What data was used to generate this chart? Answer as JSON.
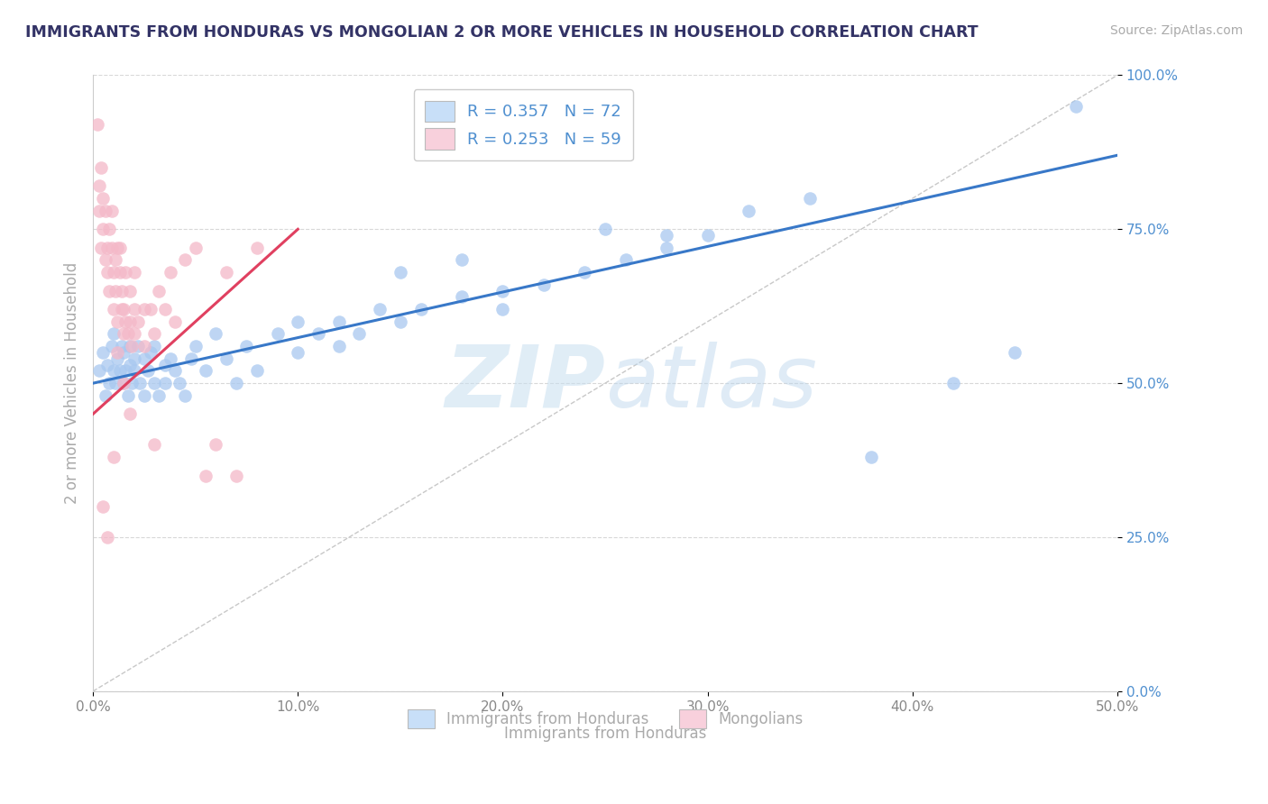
{
  "title": "IMMIGRANTS FROM HONDURAS VS MONGOLIAN 2 OR MORE VEHICLES IN HOUSEHOLD CORRELATION CHART",
  "source": "Source: ZipAtlas.com",
  "xlabel": "Immigrants from Honduras",
  "ylabel": "2 or more Vehicles in Household",
  "xlim": [
    0.0,
    0.5
  ],
  "ylim": [
    0.0,
    1.0
  ],
  "xticks": [
    0.0,
    0.1,
    0.2,
    0.3,
    0.4,
    0.5
  ],
  "yticks": [
    0.0,
    0.25,
    0.5,
    0.75,
    1.0
  ],
  "xticklabels": [
    "0.0%",
    "10.0%",
    "20.0%",
    "30.0%",
    "40.0%",
    "50.0%"
  ],
  "yticklabels": [
    "0.0%",
    "25.0%",
    "50.0%",
    "75.0%",
    "100.0%"
  ],
  "blue_R": 0.357,
  "blue_N": 72,
  "pink_R": 0.253,
  "pink_N": 59,
  "blue_color": "#a8c8f0",
  "pink_color": "#f4b8c8",
  "blue_line_color": "#3878c8",
  "pink_line_color": "#e04060",
  "legend_blue_face": "#c8dff8",
  "legend_pink_face": "#f8d0dc",
  "blue_trend_x0": 0.0,
  "blue_trend_y0": 0.5,
  "blue_trend_x1": 0.5,
  "blue_trend_y1": 0.87,
  "pink_trend_x0": 0.0,
  "pink_trend_y0": 0.45,
  "pink_trend_x1": 0.1,
  "pink_trend_y1": 0.75,
  "blue_scatter_x": [
    0.003,
    0.005,
    0.006,
    0.007,
    0.008,
    0.009,
    0.01,
    0.01,
    0.011,
    0.012,
    0.013,
    0.014,
    0.015,
    0.015,
    0.016,
    0.017,
    0.018,
    0.018,
    0.019,
    0.02,
    0.02,
    0.022,
    0.023,
    0.025,
    0.025,
    0.027,
    0.028,
    0.03,
    0.03,
    0.032,
    0.035,
    0.035,
    0.038,
    0.04,
    0.042,
    0.045,
    0.048,
    0.05,
    0.055,
    0.06,
    0.065,
    0.07,
    0.075,
    0.08,
    0.09,
    0.1,
    0.1,
    0.11,
    0.12,
    0.13,
    0.14,
    0.15,
    0.16,
    0.18,
    0.2,
    0.22,
    0.24,
    0.26,
    0.28,
    0.3,
    0.12,
    0.15,
    0.18,
    0.2,
    0.25,
    0.28,
    0.32,
    0.35,
    0.38,
    0.42,
    0.45,
    0.48
  ],
  "blue_scatter_y": [
    0.52,
    0.55,
    0.48,
    0.53,
    0.5,
    0.56,
    0.52,
    0.58,
    0.5,
    0.54,
    0.52,
    0.56,
    0.5,
    0.55,
    0.52,
    0.48,
    0.53,
    0.56,
    0.5,
    0.54,
    0.52,
    0.56,
    0.5,
    0.48,
    0.54,
    0.52,
    0.55,
    0.5,
    0.56,
    0.48,
    0.53,
    0.5,
    0.54,
    0.52,
    0.5,
    0.48,
    0.54,
    0.56,
    0.52,
    0.58,
    0.54,
    0.5,
    0.56,
    0.52,
    0.58,
    0.6,
    0.55,
    0.58,
    0.6,
    0.58,
    0.62,
    0.6,
    0.62,
    0.64,
    0.62,
    0.66,
    0.68,
    0.7,
    0.72,
    0.74,
    0.56,
    0.68,
    0.7,
    0.65,
    0.75,
    0.74,
    0.78,
    0.8,
    0.38,
    0.5,
    0.55,
    0.95
  ],
  "pink_scatter_x": [
    0.002,
    0.003,
    0.003,
    0.004,
    0.004,
    0.005,
    0.005,
    0.006,
    0.006,
    0.007,
    0.007,
    0.008,
    0.008,
    0.009,
    0.009,
    0.01,
    0.01,
    0.011,
    0.011,
    0.012,
    0.012,
    0.013,
    0.013,
    0.014,
    0.014,
    0.015,
    0.015,
    0.016,
    0.016,
    0.017,
    0.018,
    0.018,
    0.019,
    0.02,
    0.02,
    0.022,
    0.025,
    0.028,
    0.03,
    0.032,
    0.035,
    0.038,
    0.04,
    0.045,
    0.05,
    0.055,
    0.06,
    0.065,
    0.07,
    0.08,
    0.005,
    0.007,
    0.01,
    0.012,
    0.015,
    0.018,
    0.02,
    0.025,
    0.03
  ],
  "pink_scatter_y": [
    0.92,
    0.82,
    0.78,
    0.72,
    0.85,
    0.75,
    0.8,
    0.7,
    0.78,
    0.72,
    0.68,
    0.75,
    0.65,
    0.72,
    0.78,
    0.62,
    0.68,
    0.7,
    0.65,
    0.72,
    0.6,
    0.68,
    0.72,
    0.62,
    0.65,
    0.58,
    0.62,
    0.68,
    0.6,
    0.58,
    0.65,
    0.6,
    0.56,
    0.62,
    0.68,
    0.6,
    0.56,
    0.62,
    0.58,
    0.65,
    0.62,
    0.68,
    0.6,
    0.7,
    0.72,
    0.35,
    0.4,
    0.68,
    0.35,
    0.72,
    0.3,
    0.25,
    0.38,
    0.55,
    0.5,
    0.45,
    0.58,
    0.62,
    0.4
  ]
}
